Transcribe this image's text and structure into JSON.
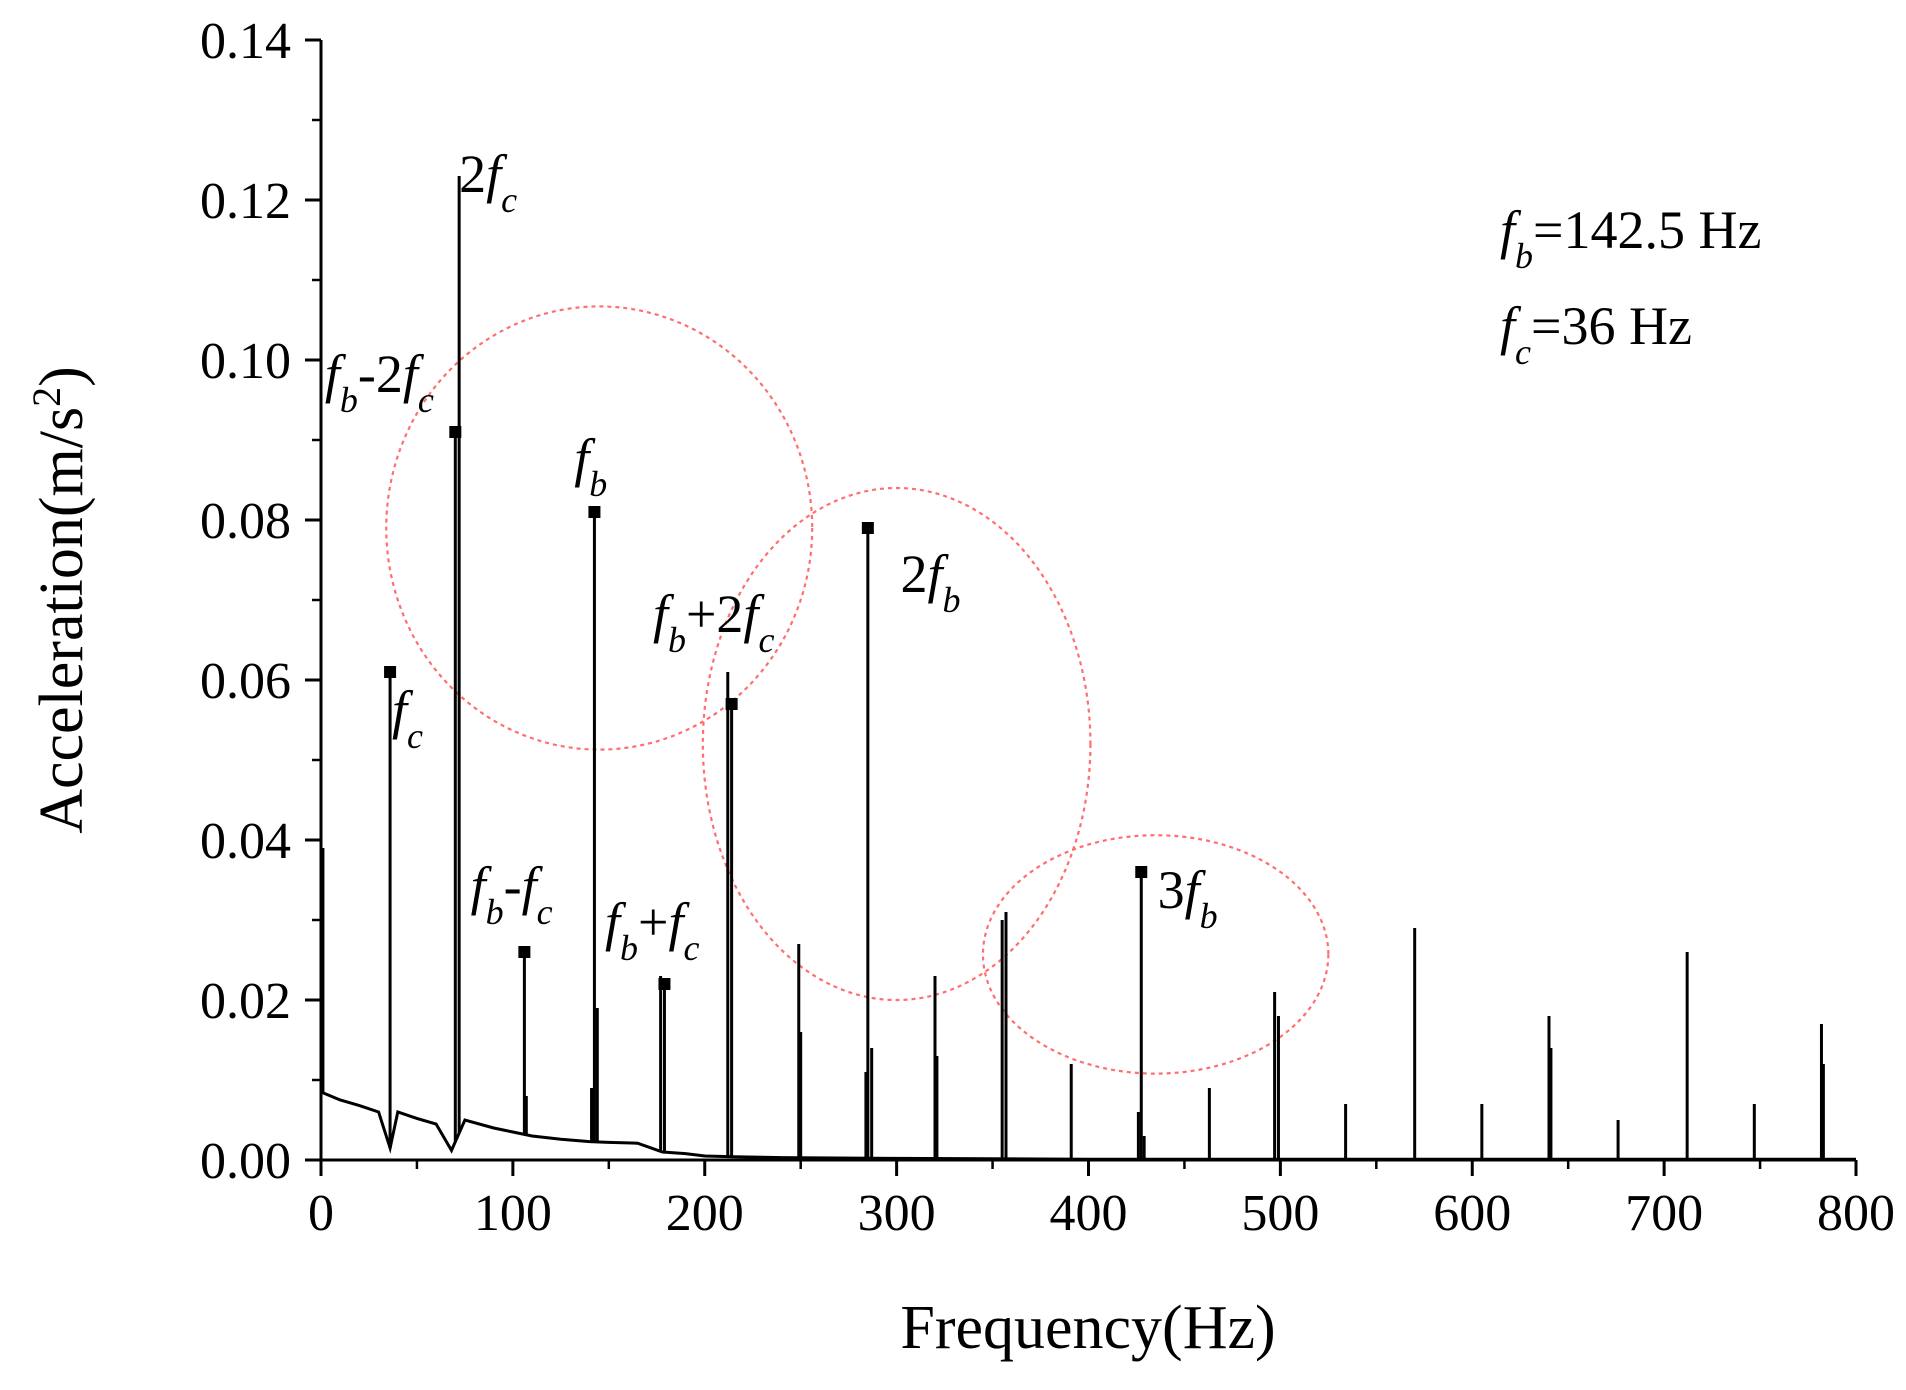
{
  "chart_data": {
    "type": "line",
    "title": "",
    "xlabel": "Frequency(Hz)",
    "ylabel": "Acceleration(m/s²)",
    "ylabel_parts": {
      "base": "Acceleration(m/s",
      "sup": "2",
      "close": ")"
    },
    "xlim": [
      0,
      800
    ],
    "ylim": [
      0,
      0.14
    ],
    "xticks": [
      0,
      100,
      200,
      300,
      400,
      500,
      600,
      700,
      800
    ],
    "xtick_labels": [
      "0",
      "100",
      "200",
      "300",
      "400",
      "500",
      "600",
      "700",
      "800"
    ],
    "yticks": [
      0,
      0.02,
      0.04,
      0.06,
      0.08,
      0.1,
      0.12,
      0.14
    ],
    "ytick_labels": [
      "0.00",
      "0.02",
      "0.04",
      "0.06",
      "0.08",
      "0.10",
      "0.12",
      "0.14"
    ],
    "grid": false,
    "series_color": "#000000",
    "marker_color": "#000000",
    "circle_color": "#ff6f6f",
    "baseline": [
      [
        0,
        0.0085
      ],
      [
        10,
        0.0075
      ],
      [
        20,
        0.0068
      ],
      [
        30,
        0.006
      ],
      [
        36,
        0.0015
      ],
      [
        40,
        0.006
      ],
      [
        50,
        0.0052
      ],
      [
        60,
        0.0045
      ],
      [
        68,
        0.0012
      ],
      [
        75,
        0.005
      ],
      [
        90,
        0.004
      ],
      [
        100,
        0.0035
      ],
      [
        110,
        0.003
      ],
      [
        125,
        0.0026
      ],
      [
        140,
        0.0023
      ],
      [
        150,
        0.0022
      ],
      [
        165,
        0.0021
      ],
      [
        178,
        0.001
      ],
      [
        190,
        0.0008
      ],
      [
        200,
        0.0005
      ],
      [
        215,
        0.0004
      ],
      [
        240,
        0.0003
      ],
      [
        300,
        0.0002
      ],
      [
        400,
        0.0001
      ],
      [
        800,
        0.0001
      ]
    ],
    "peaks": [
      {
        "x": 1,
        "y": 0.039
      },
      {
        "x": 36,
        "y": 0.061,
        "marker": true
      },
      {
        "x": 70,
        "y": 0.091,
        "marker": true
      },
      {
        "x": 72,
        "y": 0.123
      },
      {
        "x": 106,
        "y": 0.026,
        "marker": true
      },
      {
        "x": 107,
        "y": 0.008
      },
      {
        "x": 141,
        "y": 0.009
      },
      {
        "x": 142.5,
        "y": 0.081,
        "marker": true
      },
      {
        "x": 144,
        "y": 0.019
      },
      {
        "x": 177,
        "y": 0.023
      },
      {
        "x": 179,
        "y": 0.022,
        "marker": true
      },
      {
        "x": 212,
        "y": 0.061
      },
      {
        "x": 214,
        "y": 0.057,
        "marker": true
      },
      {
        "x": 249,
        "y": 0.027
      },
      {
        "x": 250,
        "y": 0.016
      },
      {
        "x": 284,
        "y": 0.011
      },
      {
        "x": 285,
        "y": 0.079,
        "marker": true
      },
      {
        "x": 287,
        "y": 0.014
      },
      {
        "x": 320,
        "y": 0.023
      },
      {
        "x": 321,
        "y": 0.013
      },
      {
        "x": 355,
        "y": 0.03
      },
      {
        "x": 357,
        "y": 0.031
      },
      {
        "x": 391,
        "y": 0.012
      },
      {
        "x": 426,
        "y": 0.006
      },
      {
        "x": 427.5,
        "y": 0.036,
        "marker": true
      },
      {
        "x": 429,
        "y": 0.003
      },
      {
        "x": 463,
        "y": 0.009
      },
      {
        "x": 497,
        "y": 0.021
      },
      {
        "x": 499,
        "y": 0.018
      },
      {
        "x": 534,
        "y": 0.007
      },
      {
        "x": 570,
        "y": 0.029
      },
      {
        "x": 605,
        "y": 0.007
      },
      {
        "x": 640,
        "y": 0.018
      },
      {
        "x": 641,
        "y": 0.014
      },
      {
        "x": 676,
        "y": 0.005
      },
      {
        "x": 712,
        "y": 0.026
      },
      {
        "x": 747,
        "y": 0.007
      },
      {
        "x": 782,
        "y": 0.017
      },
      {
        "x": 783,
        "y": 0.012
      }
    ],
    "annotations": [
      {
        "parts": [
          {
            "t": "2"
          },
          {
            "t": "f",
            "fn": true
          },
          {
            "t": "c",
            "sub": true
          }
        ],
        "x": 72,
        "y": 0.121
      },
      {
        "parts": [
          {
            "t": "f",
            "fn": true
          },
          {
            "t": "b",
            "sub": true
          },
          {
            "t": "-2"
          },
          {
            "t": "f",
            "fn": true
          },
          {
            "t": "c",
            "sub": true
          }
        ],
        "x": 2,
        "y": 0.096
      },
      {
        "parts": [
          {
            "t": "f",
            "fn": true
          },
          {
            "t": "b",
            "sub": true
          }
        ],
        "x": 132,
        "y": 0.0855
      },
      {
        "parts": [
          {
            "t": "f",
            "fn": true
          },
          {
            "t": "c",
            "sub": true
          }
        ],
        "x": 37,
        "y": 0.054
      },
      {
        "parts": [
          {
            "t": "f",
            "fn": true
          },
          {
            "t": "b",
            "sub": true
          },
          {
            "t": "+2"
          },
          {
            "t": "f",
            "fn": true
          },
          {
            "t": "c",
            "sub": true
          }
        ],
        "x": 173,
        "y": 0.066
      },
      {
        "parts": [
          {
            "t": "2"
          },
          {
            "t": "f",
            "fn": true
          },
          {
            "t": "b",
            "sub": true
          }
        ],
        "x": 302,
        "y": 0.071
      },
      {
        "parts": [
          {
            "t": "f",
            "fn": true
          },
          {
            "t": "b",
            "sub": true
          },
          {
            "t": "-"
          },
          {
            "t": "f",
            "fn": true
          },
          {
            "t": "c",
            "sub": true
          }
        ],
        "x": 78,
        "y": 0.032
      },
      {
        "parts": [
          {
            "t": "f",
            "fn": true
          },
          {
            "t": "b",
            "sub": true
          },
          {
            "t": "+"
          },
          {
            "t": "f",
            "fn": true
          },
          {
            "t": "c",
            "sub": true
          }
        ],
        "x": 148,
        "y": 0.0275
      },
      {
        "parts": [
          {
            "t": "3"
          },
          {
            "t": "f",
            "fn": true
          },
          {
            "t": "b",
            "sub": true
          }
        ],
        "x": 436,
        "y": 0.0315
      }
    ],
    "circles": [
      {
        "cx": 145,
        "cy": 0.079,
        "rx": 111,
        "ry": 0.0277
      },
      {
        "cx": 300,
        "cy": 0.052,
        "rx": 101,
        "ry": 0.032
      },
      {
        "cx": 435,
        "cy": 0.0257,
        "rx": 90,
        "ry": 0.0149
      }
    ],
    "parameters": [
      {
        "fn": "f",
        "sub": "b",
        "text": "=142.5 Hz"
      },
      {
        "fn": "f",
        "sub": "c",
        "text": "=36 Hz"
      }
    ]
  }
}
